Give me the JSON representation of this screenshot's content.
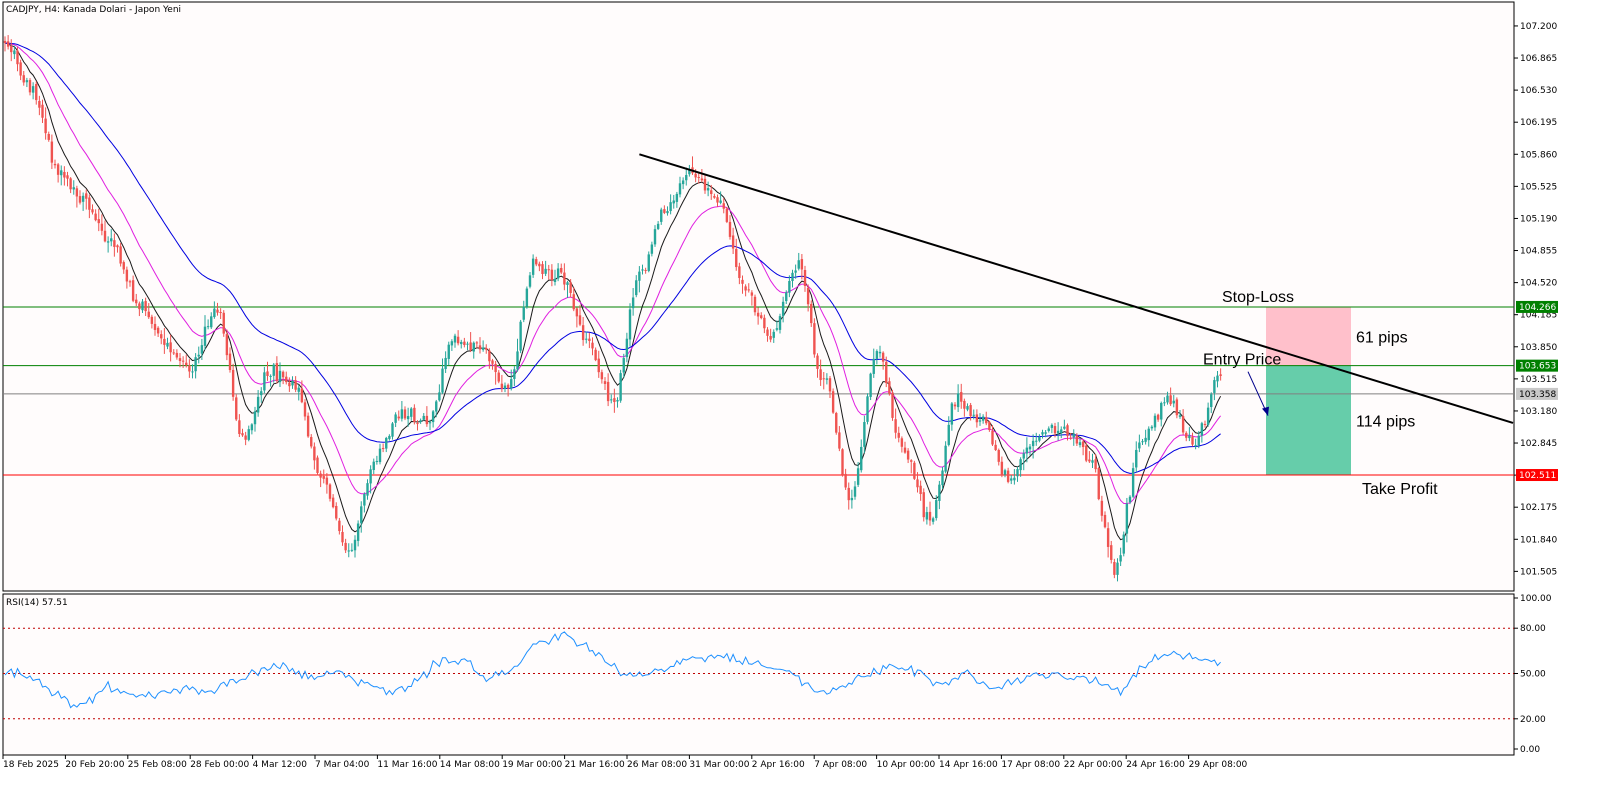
{
  "chart_data": {
    "type": "candlestick",
    "title": "CADJPY, H4:  Kanada Dolari - Japon Yeni",
    "symbol": "CADJPY",
    "timeframe": "H4",
    "price_axis": {
      "ylim": [
        101.3,
        107.45
      ],
      "ticks": [
        "107.200",
        "106.865",
        "106.530",
        "106.195",
        "105.860",
        "105.525",
        "105.190",
        "104.855",
        "104.520",
        "104.185",
        "103.850",
        "103.515",
        "103.180",
        "102.845",
        "102.510",
        "102.175",
        "101.840",
        "101.505"
      ]
    },
    "time_axis": {
      "ticks": [
        "18 Feb 2025",
        "20 Feb 20:00",
        "25 Feb 08:00",
        "28 Feb 00:00",
        "4 Mar 12:00",
        "7 Mar 04:00",
        "11 Mar 16:00",
        "14 Mar 08:00",
        "19 Mar 00:00",
        "21 Mar 16:00",
        "26 Mar 08:00",
        "31 Mar 00:00",
        "2 Apr 16:00",
        "7 Apr 08:00",
        "10 Apr 00:00",
        "14 Apr 16:00",
        "17 Apr 08:00",
        "22 Apr 00:00",
        "24 Apr 16:00",
        "29 Apr 08:00"
      ]
    },
    "close_path": [
      107.05,
      106.55,
      105.7,
      105.35,
      104.95,
      104.3,
      103.9,
      103.6,
      104.25,
      102.9,
      103.6,
      103.4,
      102.45,
      101.7,
      102.65,
      103.15,
      103.05,
      103.95,
      103.85,
      103.4,
      104.7,
      104.6,
      103.95,
      103.25,
      104.6,
      105.3,
      105.7,
      105.35,
      104.45,
      103.95,
      104.7,
      103.45,
      102.25,
      103.8,
      102.75,
      102.05,
      103.3,
      103.05,
      102.45,
      102.9,
      103.0,
      102.7,
      101.55,
      102.9,
      103.3,
      102.85,
      103.55
    ],
    "horizontal_levels": [
      {
        "name": "stop-loss",
        "price": 104.266,
        "label": "104.266",
        "color": "#008000"
      },
      {
        "name": "entry",
        "price": 103.653,
        "label": "103.653",
        "color": "#008000"
      },
      {
        "name": "current",
        "price": 103.358,
        "label": "103.358",
        "color": "#808080"
      },
      {
        "name": "take-profit",
        "price": 102.511,
        "label": "102.511",
        "color": "#ff0000"
      }
    ],
    "trendline": {
      "from": {
        "bar": 203,
        "price": 105.86
      },
      "to": {
        "bar": 483,
        "price": 103.05
      },
      "color": "#000000"
    },
    "moving_averages": [
      {
        "name": "fast",
        "color": "#1a1a1a"
      },
      {
        "name": "medium",
        "color": "#e020e0"
      },
      {
        "name": "slow",
        "color": "#0000e0"
      }
    ],
    "annotations": {
      "stop_loss": "Stop-Loss",
      "entry_price": "Entry Price",
      "take_profit": "Take Profit",
      "sl_pips": "61 pips",
      "tp_pips": "114 pips"
    },
    "rsi": {
      "label": "RSI(14) 57.51",
      "ylim": [
        0,
        100
      ],
      "ticks": [
        "100.00",
        "80.00",
        "50.00",
        "20.00",
        "0.00"
      ],
      "levels": [
        80,
        50,
        20
      ],
      "path": [
        50,
        48,
        35,
        28,
        42,
        35,
        37,
        40,
        38,
        45,
        52,
        55,
        48,
        52,
        45,
        38,
        42,
        55,
        60,
        45,
        52,
        70,
        75,
        68,
        55,
        48,
        52,
        60,
        62,
        58,
        55,
        50,
        38,
        42,
        48,
        55,
        50,
        44,
        50,
        40,
        45,
        50,
        48,
        45,
        38,
        55,
        65,
        60,
        57.51
      ],
      "color": "#1e90ff"
    },
    "colors": {
      "bull": "#26a69a",
      "bear": "#ef5350",
      "background": "#fffcfc",
      "sl_zone": "#ffc0cb",
      "tp_zone": "#66cdaa",
      "arrow": "#00008b"
    }
  }
}
